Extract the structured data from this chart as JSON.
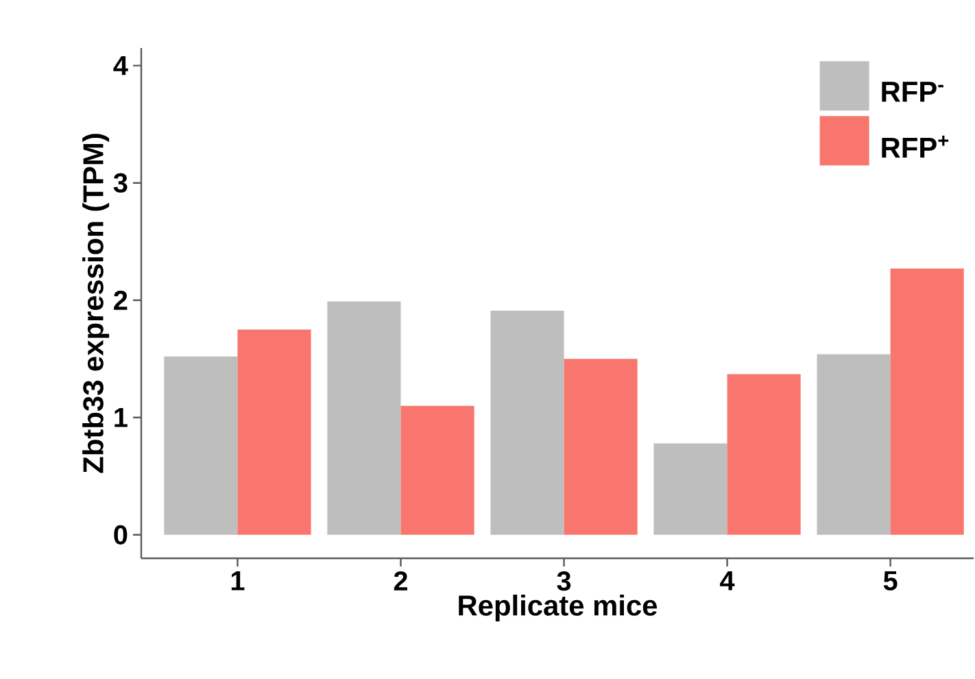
{
  "chart_data": {
    "type": "bar",
    "xlabel": "Replicate mice",
    "ylabel": "Zbtb33 expression (TPM)",
    "categories": [
      "1",
      "2",
      "3",
      "4",
      "5"
    ],
    "series": [
      {
        "name": "RFP$^{-}$",
        "color": "#bebebe",
        "values": [
          1.52,
          1.99,
          1.91,
          0.78,
          1.54
        ]
      },
      {
        "name": "RFP$^{+}$",
        "color": "#f8766d",
        "values": [
          1.75,
          1.1,
          1.5,
          1.37,
          2.27
        ]
      }
    ],
    "ylim": [
      -0.2,
      4.15
    ],
    "yticks": [
      0,
      1,
      2,
      3,
      4
    ],
    "grid": false,
    "legend": "top right"
  }
}
